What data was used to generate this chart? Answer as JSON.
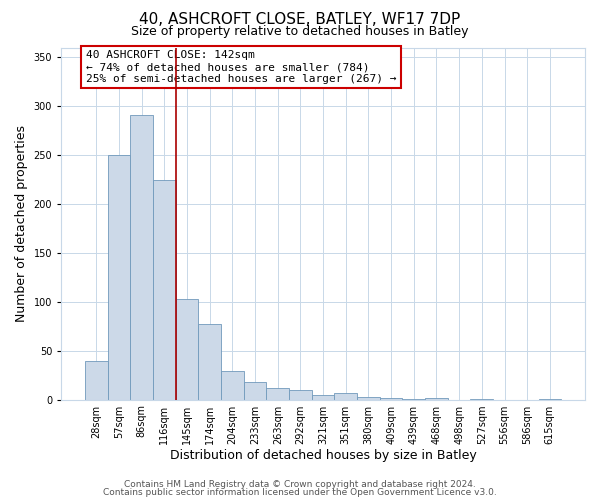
{
  "title": "40, ASHCROFT CLOSE, BATLEY, WF17 7DP",
  "subtitle": "Size of property relative to detached houses in Batley",
  "xlabel": "Distribution of detached houses by size in Batley",
  "ylabel": "Number of detached properties",
  "bar_labels": [
    "28sqm",
    "57sqm",
    "86sqm",
    "116sqm",
    "145sqm",
    "174sqm",
    "204sqm",
    "233sqm",
    "263sqm",
    "292sqm",
    "321sqm",
    "351sqm",
    "380sqm",
    "409sqm",
    "439sqm",
    "468sqm",
    "498sqm",
    "527sqm",
    "556sqm",
    "586sqm",
    "615sqm"
  ],
  "bar_heights": [
    39,
    250,
    291,
    225,
    103,
    77,
    29,
    18,
    12,
    10,
    5,
    7,
    3,
    2,
    1,
    2,
    0,
    1,
    0,
    0,
    1
  ],
  "bar_color": "#ccd9e8",
  "bar_edge_color": "#7099bb",
  "vline_pos": 3.5,
  "vline_color": "#aa0000",
  "annotation_title": "40 ASHCROFT CLOSE: 142sqm",
  "annotation_line1": "← 74% of detached houses are smaller (784)",
  "annotation_line2": "25% of semi-detached houses are larger (267) →",
  "annotation_box_color": "#cc0000",
  "ylim": [
    0,
    360
  ],
  "yticks": [
    0,
    50,
    100,
    150,
    200,
    250,
    300,
    350
  ],
  "footer1": "Contains HM Land Registry data © Crown copyright and database right 2024.",
  "footer2": "Contains public sector information licensed under the Open Government Licence v3.0.",
  "bg_color": "#ffffff",
  "grid_color": "#c8d8e8",
  "title_fontsize": 11,
  "subtitle_fontsize": 9,
  "axis_label_fontsize": 9,
  "tick_fontsize": 7,
  "annotation_fontsize": 8,
  "footer_fontsize": 6.5
}
